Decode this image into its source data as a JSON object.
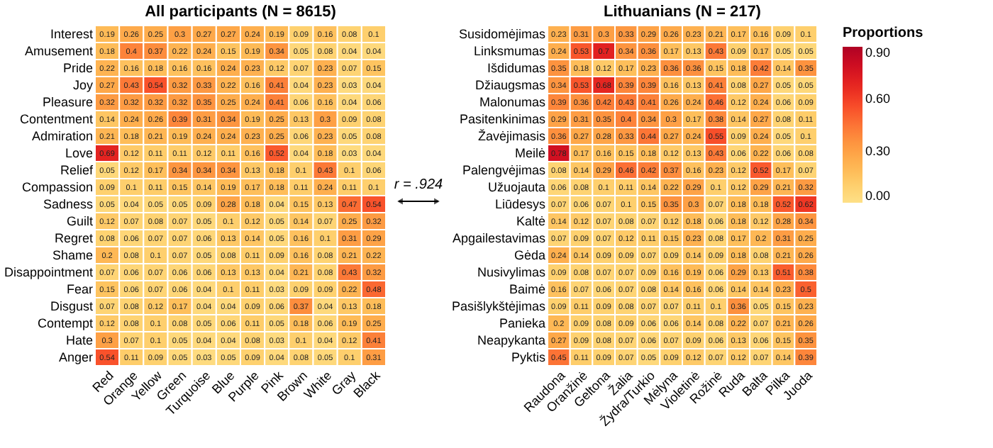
{
  "chart_data": [
    {
      "type": "heatmap",
      "title": "All participants (N = 8615)",
      "annotations": [
        "r = .924"
      ],
      "data_labels": true,
      "categories": [
        "Red",
        "Orange",
        "Yellow",
        "Green",
        "Turquoise",
        "Blue",
        "Purple",
        "Pink",
        "Brown",
        "White",
        "Gray",
        "Black"
      ],
      "y_categories": [
        "Interest",
        "Amusement",
        "Pride",
        "Joy",
        "Pleasure",
        "Contentment",
        "Admiration",
        "Love",
        "Relief",
        "Compassion",
        "Sadness",
        "Guilt",
        "Regret",
        "Shame",
        "Disappointment",
        "Fear",
        "Disgust",
        "Contempt",
        "Hate",
        "Anger"
      ],
      "cells": [
        [
          0.19,
          0.26,
          0.25,
          0.3,
          0.27,
          0.27,
          0.24,
          0.19,
          0.09,
          0.16,
          0.08,
          0.1
        ],
        [
          0.18,
          0.4,
          0.37,
          0.22,
          0.24,
          0.15,
          0.19,
          0.34,
          0.05,
          0.08,
          0.04,
          0.04
        ],
        [
          0.22,
          0.16,
          0.18,
          0.16,
          0.16,
          0.24,
          0.23,
          0.12,
          0.07,
          0.23,
          0.07,
          0.15
        ],
        [
          0.27,
          0.43,
          0.54,
          0.32,
          0.33,
          0.22,
          0.16,
          0.41,
          0.04,
          0.23,
          0.03,
          0.04
        ],
        [
          0.32,
          0.32,
          0.32,
          0.32,
          0.35,
          0.25,
          0.24,
          0.41,
          0.06,
          0.16,
          0.04,
          0.06
        ],
        [
          0.14,
          0.24,
          0.26,
          0.39,
          0.31,
          0.34,
          0.19,
          0.25,
          0.13,
          0.3,
          0.09,
          0.08
        ],
        [
          0.21,
          0.18,
          0.21,
          0.19,
          0.24,
          0.24,
          0.23,
          0.25,
          0.06,
          0.23,
          0.05,
          0.08
        ],
        [
          0.69,
          0.12,
          0.11,
          0.11,
          0.12,
          0.11,
          0.16,
          0.52,
          0.04,
          0.18,
          0.03,
          0.04
        ],
        [
          0.05,
          0.12,
          0.17,
          0.34,
          0.34,
          0.34,
          0.13,
          0.18,
          0.1,
          0.43,
          0.1,
          0.06
        ],
        [
          0.09,
          0.1,
          0.11,
          0.15,
          0.14,
          0.19,
          0.17,
          0.18,
          0.11,
          0.24,
          0.11,
          0.1
        ],
        [
          0.05,
          0.04,
          0.05,
          0.05,
          0.09,
          0.28,
          0.18,
          0.04,
          0.15,
          0.13,
          0.47,
          0.54
        ],
        [
          0.12,
          0.07,
          0.08,
          0.07,
          0.05,
          0.1,
          0.12,
          0.05,
          0.14,
          0.07,
          0.25,
          0.32
        ],
        [
          0.08,
          0.06,
          0.07,
          0.07,
          0.06,
          0.13,
          0.14,
          0.05,
          0.16,
          0.1,
          0.31,
          0.29
        ],
        [
          0.2,
          0.08,
          0.1,
          0.07,
          0.05,
          0.08,
          0.11,
          0.09,
          0.16,
          0.08,
          0.21,
          0.22
        ],
        [
          0.07,
          0.06,
          0.07,
          0.06,
          0.06,
          0.13,
          0.13,
          0.04,
          0.21,
          0.08,
          0.43,
          0.32
        ],
        [
          0.15,
          0.06,
          0.07,
          0.06,
          0.04,
          0.1,
          0.11,
          0.03,
          0.09,
          0.09,
          0.22,
          0.48
        ],
        [
          0.07,
          0.08,
          0.12,
          0.17,
          0.04,
          0.04,
          0.09,
          0.06,
          0.37,
          0.04,
          0.13,
          0.18
        ],
        [
          0.12,
          0.08,
          0.1,
          0.08,
          0.05,
          0.06,
          0.11,
          0.05,
          0.18,
          0.06,
          0.19,
          0.25
        ],
        [
          0.3,
          0.07,
          0.1,
          0.05,
          0.04,
          0.04,
          0.08,
          0.03,
          0.1,
          0.04,
          0.12,
          0.41
        ],
        [
          0.54,
          0.11,
          0.09,
          0.05,
          0.03,
          0.05,
          0.09,
          0.04,
          0.08,
          0.05,
          0.1,
          0.31
        ]
      ]
    },
    {
      "type": "heatmap",
      "title": "Lithuanians (N = 217)",
      "data_labels": true,
      "clabel": "Proportions",
      "clim": [
        0,
        0.9
      ],
      "cticks": [
        {
          "value": 0,
          "label": "0.00"
        },
        {
          "value": 0.3,
          "label": "0.30"
        },
        {
          "value": 0.6,
          "label": "0.60"
        },
        {
          "value": 0.9,
          "label": "0.90"
        }
      ],
      "categories": [
        "Raudona",
        "Oranžinė",
        "Geltona",
        "Žalia",
        "Žydra/Turkio",
        "Mėlyna",
        "Violetinė",
        "Rožinė",
        "Ruda",
        "Balta",
        "Pilka",
        "Juoda"
      ],
      "y_categories": [
        "Susidomėjimas",
        "Linksmumas",
        "Išdidumas",
        "Džiaugsmas",
        "Malonumas",
        "Pasitenkinimas",
        "Žavėjimasis",
        "Meilė",
        "Palengvėjimas",
        "Užuojauta",
        "Liūdesys",
        "Kaltė",
        "Apgailestavimas",
        "Gėda",
        "Nusivylimas",
        "Baimė",
        "Pasišlykštėjimas",
        "Panieka",
        "Neapykanta",
        "Pyktis"
      ],
      "cells": [
        [
          0.23,
          0.31,
          0.3,
          0.33,
          0.29,
          0.26,
          0.23,
          0.21,
          0.17,
          0.16,
          0.09,
          0.1
        ],
        [
          0.24,
          0.53,
          0.7,
          0.34,
          0.36,
          0.17,
          0.13,
          0.43,
          0.09,
          0.17,
          0.05,
          0.05
        ],
        [
          0.35,
          0.18,
          0.12,
          0.17,
          0.23,
          0.36,
          0.36,
          0.15,
          0.18,
          0.42,
          0.14,
          0.35
        ],
        [
          0.34,
          0.53,
          0.68,
          0.39,
          0.39,
          0.16,
          0.13,
          0.41,
          0.08,
          0.27,
          0.05,
          0.05
        ],
        [
          0.39,
          0.36,
          0.42,
          0.43,
          0.41,
          0.26,
          0.24,
          0.46,
          0.12,
          0.24,
          0.06,
          0.09
        ],
        [
          0.29,
          0.31,
          0.35,
          0.4,
          0.34,
          0.3,
          0.17,
          0.38,
          0.14,
          0.27,
          0.08,
          0.11
        ],
        [
          0.36,
          0.27,
          0.28,
          0.33,
          0.44,
          0.27,
          0.24,
          0.55,
          0.09,
          0.24,
          0.05,
          0.1
        ],
        [
          0.78,
          0.17,
          0.16,
          0.15,
          0.18,
          0.12,
          0.13,
          0.43,
          0.06,
          0.22,
          0.06,
          0.08
        ],
        [
          0.08,
          0.14,
          0.29,
          0.46,
          0.42,
          0.37,
          0.16,
          0.23,
          0.12,
          0.52,
          0.17,
          0.07
        ],
        [
          0.06,
          0.08,
          0.1,
          0.11,
          0.14,
          0.22,
          0.29,
          0.1,
          0.12,
          0.29,
          0.21,
          0.32
        ],
        [
          0.07,
          0.06,
          0.07,
          0.1,
          0.15,
          0.35,
          0.3,
          0.07,
          0.18,
          0.18,
          0.52,
          0.62
        ],
        [
          0.14,
          0.12,
          0.07,
          0.08,
          0.07,
          0.12,
          0.18,
          0.06,
          0.18,
          0.12,
          0.28,
          0.34
        ],
        [
          0.07,
          0.09,
          0.07,
          0.12,
          0.11,
          0.15,
          0.23,
          0.08,
          0.17,
          0.2,
          0.31,
          0.25
        ],
        [
          0.24,
          0.14,
          0.09,
          0.09,
          0.07,
          0.09,
          0.14,
          0.09,
          0.18,
          0.08,
          0.21,
          0.26
        ],
        [
          0.09,
          0.08,
          0.07,
          0.07,
          0.09,
          0.16,
          0.19,
          0.06,
          0.29,
          0.13,
          0.51,
          0.38
        ],
        [
          0.16,
          0.07,
          0.06,
          0.07,
          0.08,
          0.14,
          0.16,
          0.06,
          0.14,
          0.14,
          0.23,
          0.5
        ],
        [
          0.09,
          0.11,
          0.09,
          0.08,
          0.07,
          0.07,
          0.11,
          0.1,
          0.36,
          0.05,
          0.15,
          0.23
        ],
        [
          0.2,
          0.09,
          0.08,
          0.09,
          0.06,
          0.06,
          0.14,
          0.08,
          0.22,
          0.07,
          0.21,
          0.26
        ],
        [
          0.27,
          0.09,
          0.08,
          0.07,
          0.06,
          0.07,
          0.09,
          0.06,
          0.13,
          0.06,
          0.15,
          0.35
        ],
        [
          0.45,
          0.11,
          0.09,
          0.07,
          0.05,
          0.09,
          0.12,
          0.07,
          0.12,
          0.07,
          0.14,
          0.39
        ]
      ]
    }
  ]
}
